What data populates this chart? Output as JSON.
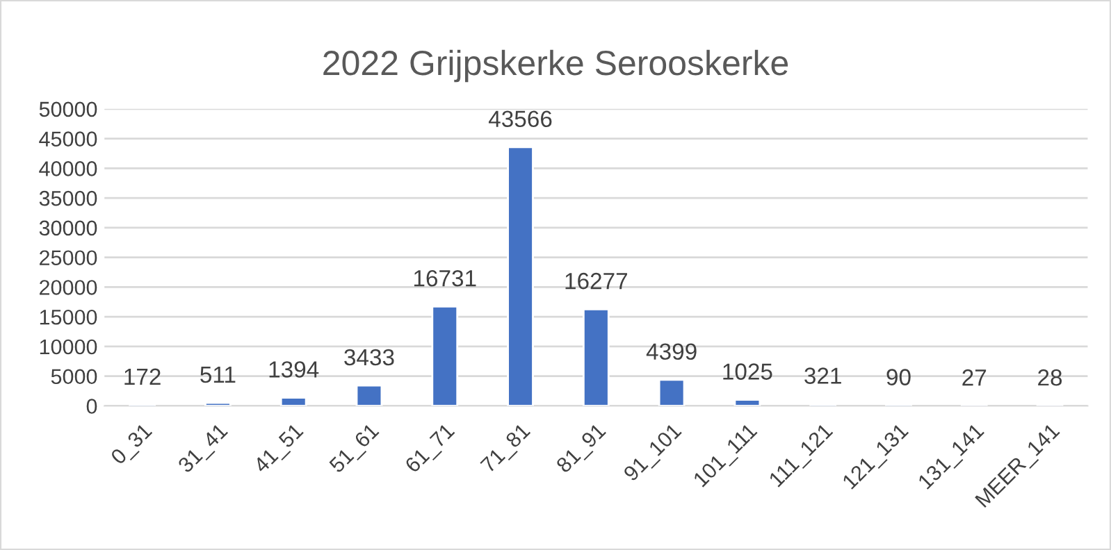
{
  "chart_data": {
    "type": "bar",
    "title": "2022 Grijpskerke Serooskerke",
    "categories": [
      "0_31",
      "31_41",
      "41_51",
      "51_61",
      "61_71",
      "71_81",
      "81_91",
      "91_101",
      "101_111",
      "111_121",
      "121_131",
      "131_141",
      "MEER_141"
    ],
    "values": [
      172,
      511,
      1394,
      3433,
      16731,
      43566,
      16277,
      4399,
      1025,
      321,
      90,
      27,
      28
    ],
    "color": "#4472c4",
    "ylim": [
      0,
      50000
    ],
    "yticks": [
      0,
      5000,
      10000,
      15000,
      20000,
      25000,
      30000,
      35000,
      40000,
      45000,
      50000
    ],
    "grid": "y",
    "data_labels": true
  }
}
